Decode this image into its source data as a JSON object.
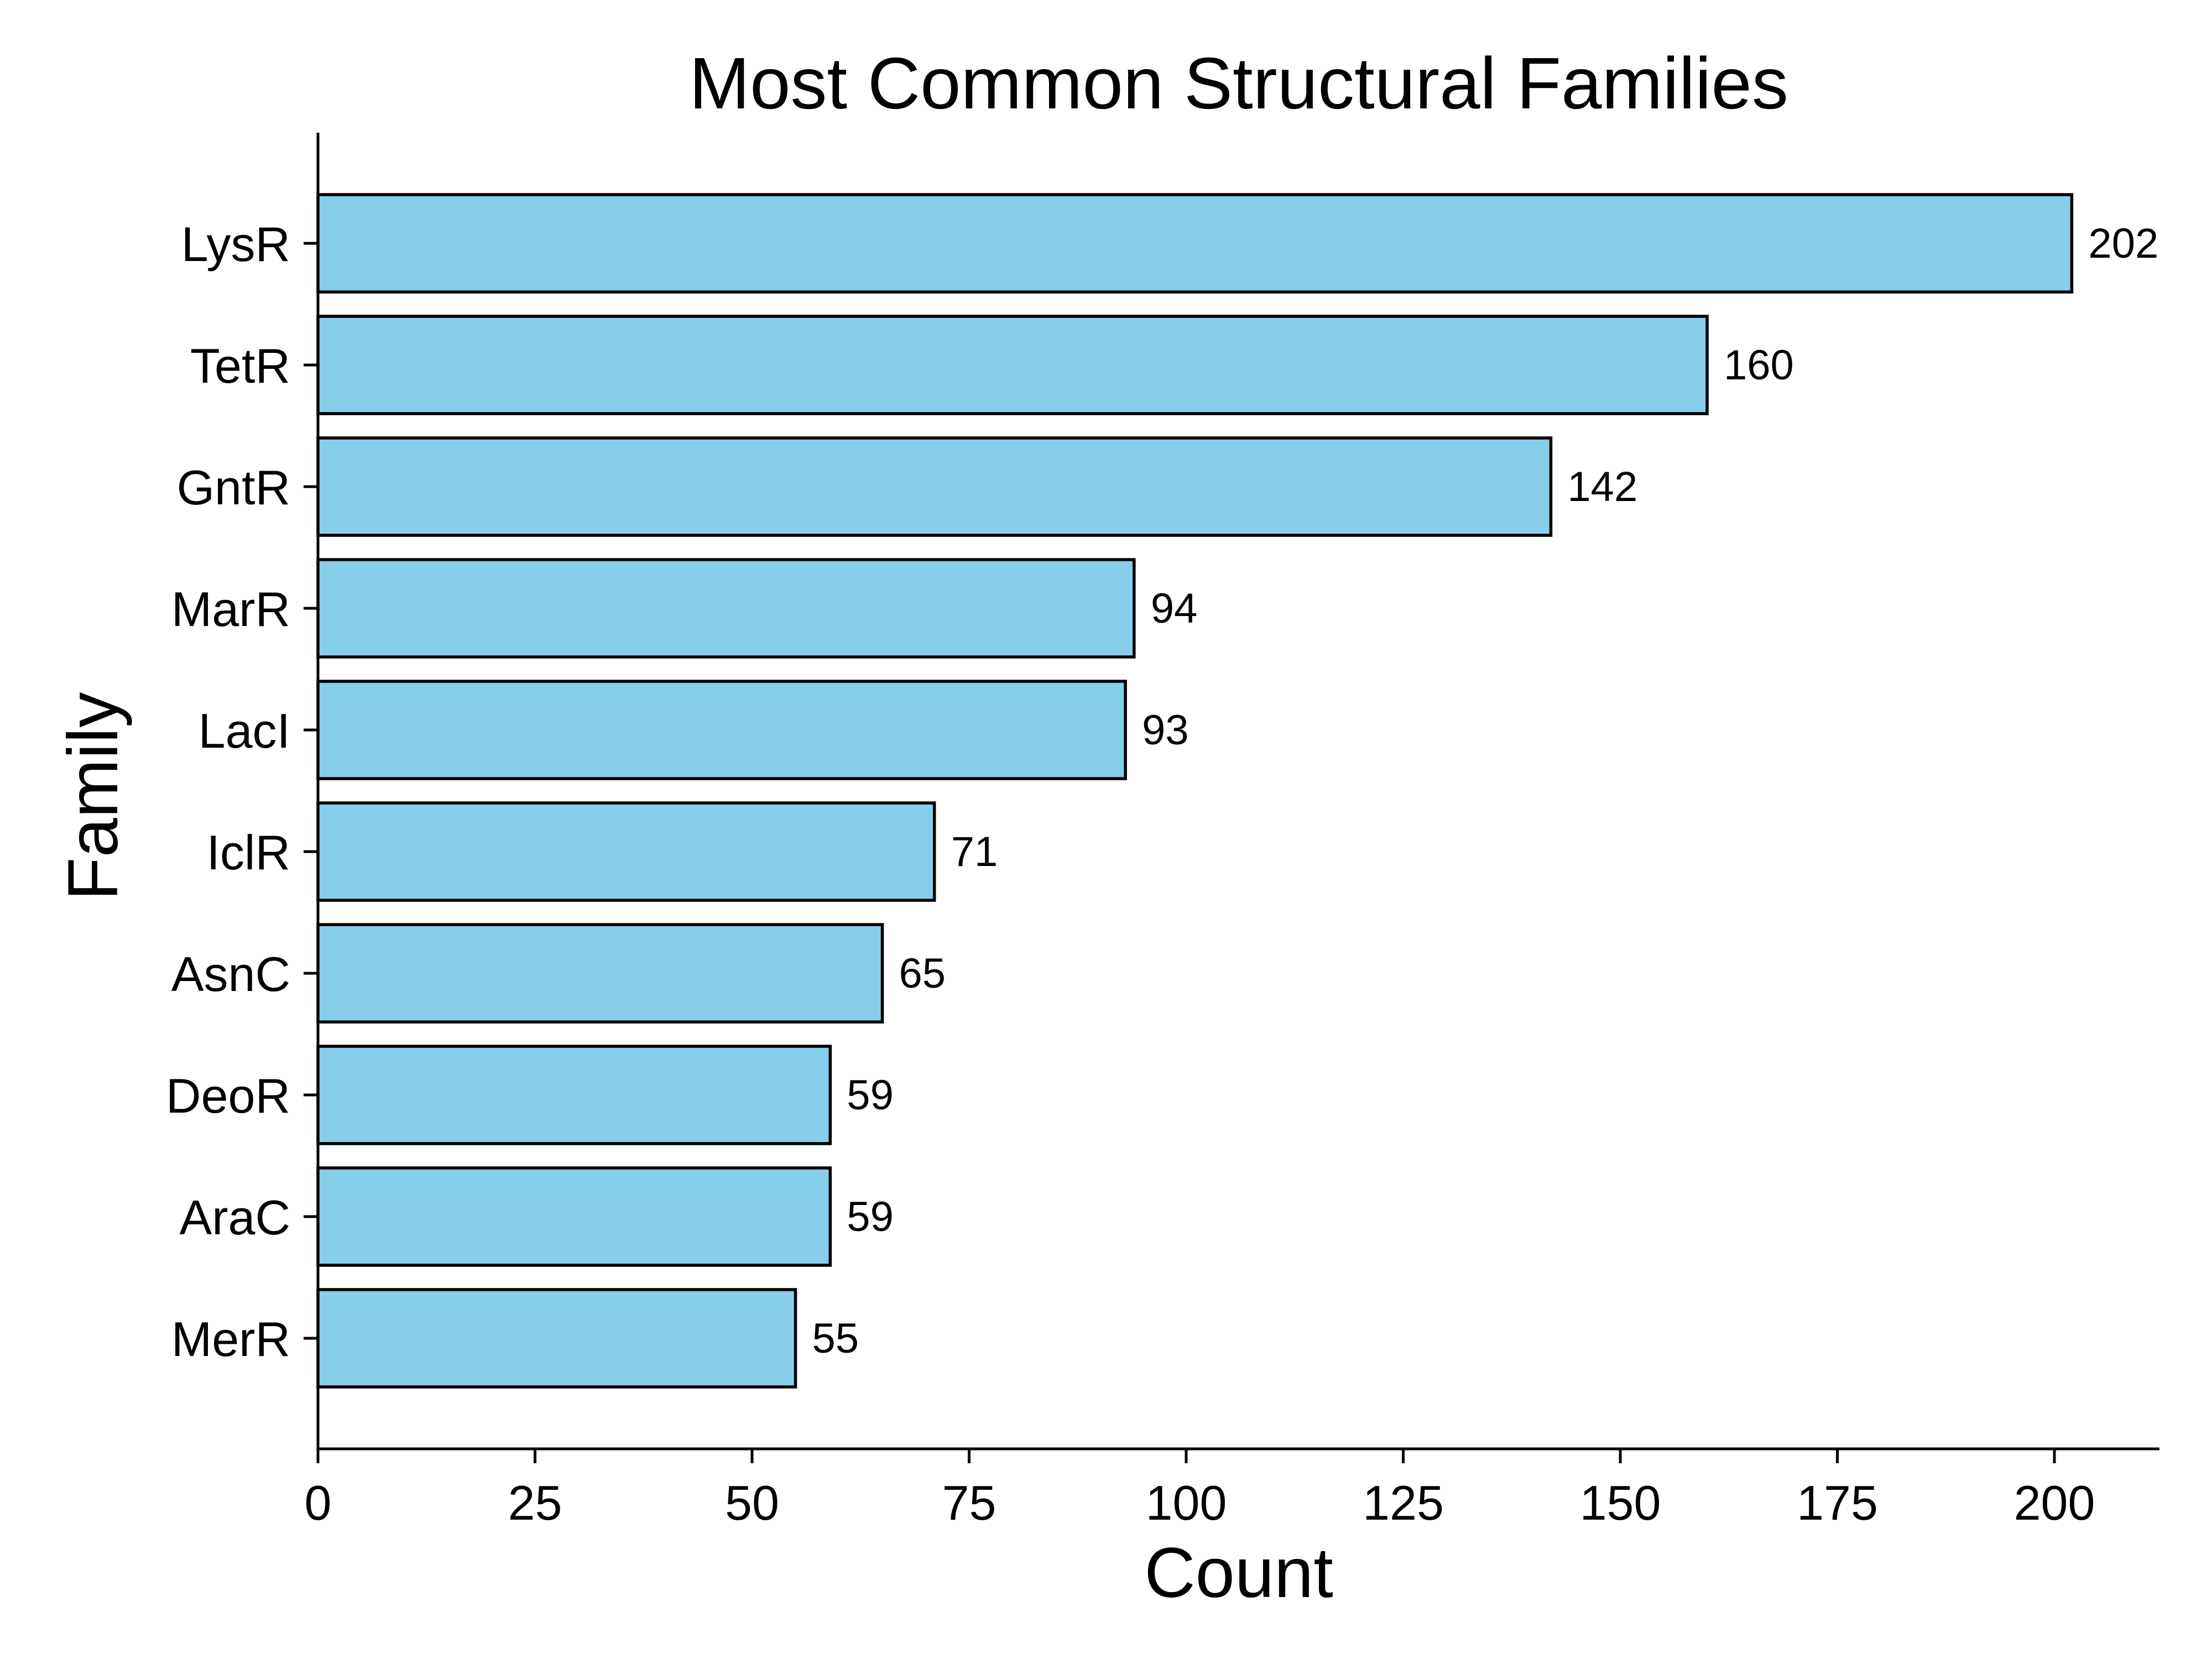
{
  "chart_data": {
    "type": "bar",
    "orientation": "horizontal",
    "title": "Most Common Structural Families",
    "xlabel": "Count",
    "ylabel": "Family",
    "categories": [
      "LysR",
      "TetR",
      "GntR",
      "MarR",
      "LacI",
      "IclR",
      "AsnC",
      "DeoR",
      "AraC",
      "MerR"
    ],
    "values": [
      202,
      160,
      142,
      94,
      93,
      71,
      65,
      59,
      59,
      55
    ],
    "data_labels": [
      "202",
      "160",
      "142",
      "94",
      "93",
      "71",
      "65",
      "59",
      "59",
      "55"
    ],
    "xlim": [
      0,
      212.1
    ],
    "xticks": [
      0,
      25,
      50,
      75,
      100,
      125,
      150,
      175,
      200
    ],
    "xtick_labels": [
      "0",
      "25",
      "50",
      "75",
      "100",
      "125",
      "150",
      "175",
      "200"
    ],
    "grid": false,
    "legend": "none",
    "colors": {
      "bar_fill": "#87ceeb",
      "bar_edge": "#000000"
    }
  }
}
